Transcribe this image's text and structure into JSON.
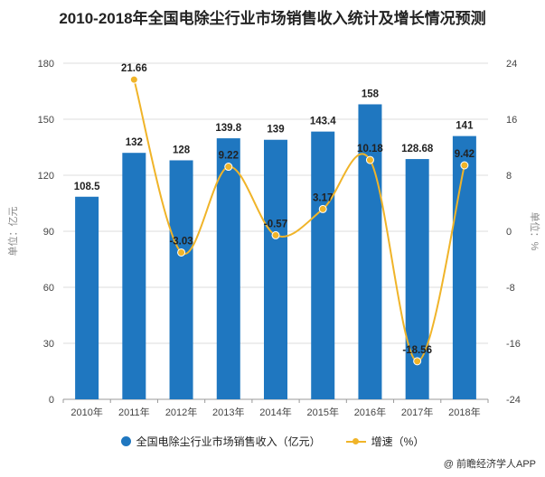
{
  "title": "2010-2018年全国电除尘行业市场销售收入统计及增长情况预测",
  "chart_data": {
    "type": "bar",
    "categories": [
      "2010年",
      "2011年",
      "2012年",
      "2013年",
      "2014年",
      "2015年",
      "2016年",
      "2017年",
      "2018年"
    ],
    "series": [
      {
        "name": "全国电除尘行业市场销售收入（亿元）",
        "type": "bar",
        "axis": "left",
        "values": [
          108.5,
          132,
          128,
          139.8,
          139,
          143.4,
          158,
          128.68,
          141
        ],
        "labels": [
          "108.5",
          "132",
          "128",
          "139.8",
          "139",
          "143.4",
          "158",
          "128.68",
          "141"
        ]
      },
      {
        "name": "增速（%）",
        "type": "line",
        "axis": "right",
        "values": [
          null,
          21.66,
          -3.03,
          9.22,
          -0.57,
          3.17,
          10.18,
          -18.56,
          9.42
        ],
        "labels": [
          "",
          "21.66",
          "-3.03",
          "9.22",
          "-0.57",
          "3.17",
          "10.18",
          "-18.56",
          "9.42"
        ]
      }
    ],
    "ylabel": "单位：亿元",
    "y2label": "单位：%",
    "ylim": [
      0,
      180
    ],
    "y2lim": [
      -24,
      24
    ],
    "yticks": [
      0,
      30,
      60,
      90,
      120,
      150,
      180
    ],
    "y2ticks": [
      -24,
      -16,
      -8,
      0,
      8,
      16,
      24
    ],
    "grid": true,
    "legend_position": "bottom-center",
    "colors": {
      "bar": "#1f77c0",
      "line": "#f0b429",
      "grid": "#dcdcdc"
    }
  },
  "legend": {
    "bar_label": "全国电除尘行业市场销售收入（亿元）",
    "line_label": "增速（%）"
  },
  "source": "@ 前瞻经济学人APP"
}
